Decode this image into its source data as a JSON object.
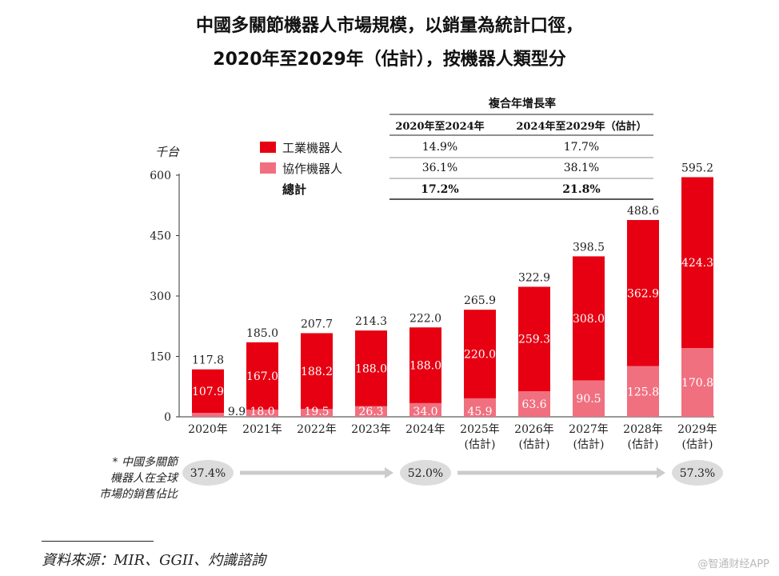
{
  "title_line1": "中國多關節機器人市場規模，以銷量為統計口徑，",
  "title_line2": "2020年至2029年（估計），按機器人類型分",
  "colors": {
    "industrial": "#e60012",
    "collaborative": "#f07080",
    "oval": "#dcdcdc",
    "arrow": "#cccccc"
  },
  "cagr_table": {
    "header": "複合年增長率",
    "col1": "2020年至2024年",
    "col2": "2024年至2029年（估計）",
    "rows": [
      {
        "label": "工業機器人",
        "v1": "14.9%",
        "v2": "17.7%"
      },
      {
        "label": "協作機器人",
        "v1": "36.1%",
        "v2": "38.1%"
      },
      {
        "label": "總計",
        "v1": "17.2%",
        "v2": "21.8%"
      }
    ]
  },
  "chart_data": {
    "type": "bar",
    "stacked": true,
    "ylabel": "千台",
    "ylim": [
      0,
      600
    ],
    "yticks": [
      0,
      150,
      300,
      450,
      600
    ],
    "categories": [
      [
        "2020年"
      ],
      [
        "2021年"
      ],
      [
        "2022年"
      ],
      [
        "2023年"
      ],
      [
        "2024年"
      ],
      [
        "2025年",
        "(估計)"
      ],
      [
        "2026年",
        "(估計)"
      ],
      [
        "2027年",
        "(估計)"
      ],
      [
        "2028年",
        "(估計)"
      ],
      [
        "2029年",
        "(估計)"
      ]
    ],
    "series": [
      {
        "name": "協作機器人",
        "values": [
          9.9,
          18.0,
          19.5,
          26.3,
          34.0,
          45.9,
          63.6,
          90.5,
          125.8,
          170.8
        ],
        "labels": [
          "9.9",
          "18.0",
          "19.5",
          "26.3",
          "34.0",
          "45.9",
          "63.6",
          "90.5",
          "125.8",
          "170.8"
        ]
      },
      {
        "name": "工業機器人",
        "values": [
          107.9,
          167.0,
          188.2,
          188.0,
          188.0,
          220.0,
          259.3,
          308.0,
          362.9,
          424.3
        ],
        "labels": [
          "107.9",
          "167.0",
          "188.2",
          "188.0",
          "188.0",
          "220.0",
          "259.3",
          "308.0",
          "362.9",
          "424.3"
        ]
      }
    ],
    "totals": [
      117.8,
      185.0,
      207.7,
      214.3,
      222.0,
      265.9,
      322.9,
      398.5,
      488.6,
      595.2
    ],
    "total_labels": [
      "117.8",
      "185.0",
      "207.7",
      "214.3",
      "222.0",
      "265.9",
      "322.9",
      "398.5",
      "488.6",
      "595.2"
    ]
  },
  "share": {
    "label_lines": [
      "* 中國多關節",
      "機器人在全球",
      "市場的銷售佔比"
    ],
    "values": [
      {
        "category_index": 0,
        "text": "37.4%"
      },
      {
        "category_index": 4,
        "text": "52.0%"
      },
      {
        "category_index": 9,
        "text": "57.3%"
      }
    ]
  },
  "source": "資料來源：MIR、GGII、灼識諮詢",
  "watermark": "@智通财经APP"
}
